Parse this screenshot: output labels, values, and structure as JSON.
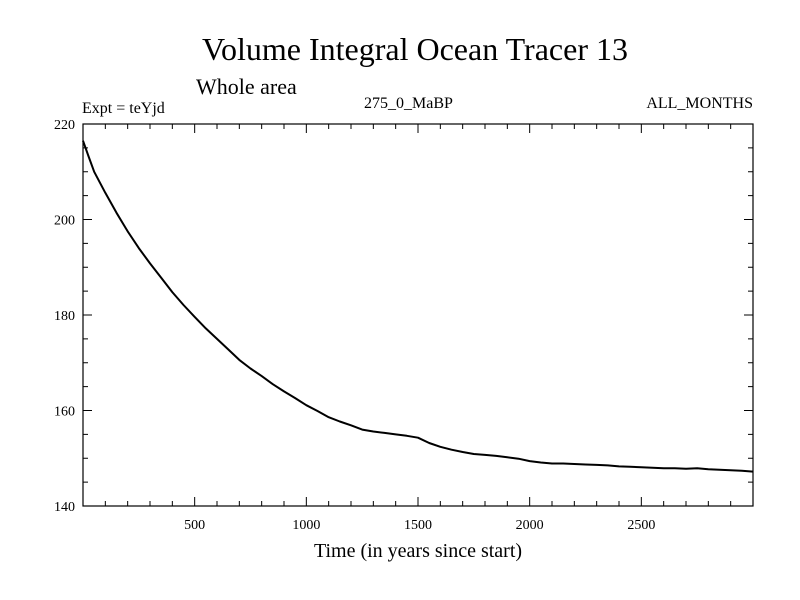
{
  "chart_data": {
    "type": "line",
    "title": "Volume Integral Ocean Tracer 13",
    "subtitle": "Whole area",
    "experiment_label": "Expt = teYjd",
    "period_label": "275_0_MaBP",
    "months_label": "ALL_MONTHS",
    "xlabel": "Time (in years since start)",
    "ylabel": "",
    "xlim": [
      0,
      3000
    ],
    "ylim": [
      140,
      220
    ],
    "x_ticks": [
      500,
      1000,
      1500,
      2000,
      2500
    ],
    "y_ticks": [
      140,
      160,
      180,
      200,
      220
    ],
    "x_tick_labels": [
      "500",
      "1000",
      "1500",
      "2000",
      "2500"
    ],
    "y_tick_labels": [
      "140",
      "160",
      "180",
      "200",
      "220"
    ],
    "x_minor_step": 100,
    "y_minor_step": 5,
    "grid": false,
    "series": [
      {
        "name": "Ocean Tracer 13",
        "color": "#000000",
        "x": [
          0,
          25,
          50,
          100,
          150,
          200,
          250,
          300,
          350,
          400,
          450,
          500,
          550,
          600,
          650,
          700,
          750,
          800,
          850,
          900,
          950,
          1000,
          1050,
          1100,
          1150,
          1200,
          1250,
          1300,
          1350,
          1400,
          1450,
          1500,
          1550,
          1600,
          1650,
          1700,
          1750,
          1800,
          1850,
          1900,
          1950,
          2000,
          2050,
          2100,
          2150,
          2200,
          2250,
          2300,
          2350,
          2400,
          2450,
          2500,
          2550,
          2600,
          2650,
          2700,
          2750,
          2800,
          2850,
          2900,
          2950,
          3000
        ],
        "values": [
          216.5,
          213.2,
          210.0,
          205.6,
          201.4,
          197.5,
          194.0,
          190.8,
          187.8,
          184.8,
          182.1,
          179.6,
          177.2,
          175.0,
          172.8,
          170.6,
          168.8,
          167.2,
          165.5,
          164.0,
          162.6,
          161.1,
          159.9,
          158.6,
          157.7,
          156.9,
          156.0,
          155.6,
          155.3,
          155.0,
          154.7,
          154.3,
          153.2,
          152.4,
          151.8,
          151.3,
          150.9,
          150.7,
          150.5,
          150.2,
          149.9,
          149.4,
          149.1,
          148.9,
          148.9,
          148.8,
          148.7,
          148.6,
          148.5,
          148.3,
          148.2,
          148.1,
          148.0,
          147.9,
          147.9,
          147.8,
          147.9,
          147.7,
          147.6,
          147.5,
          147.4,
          147.2
        ]
      }
    ]
  }
}
